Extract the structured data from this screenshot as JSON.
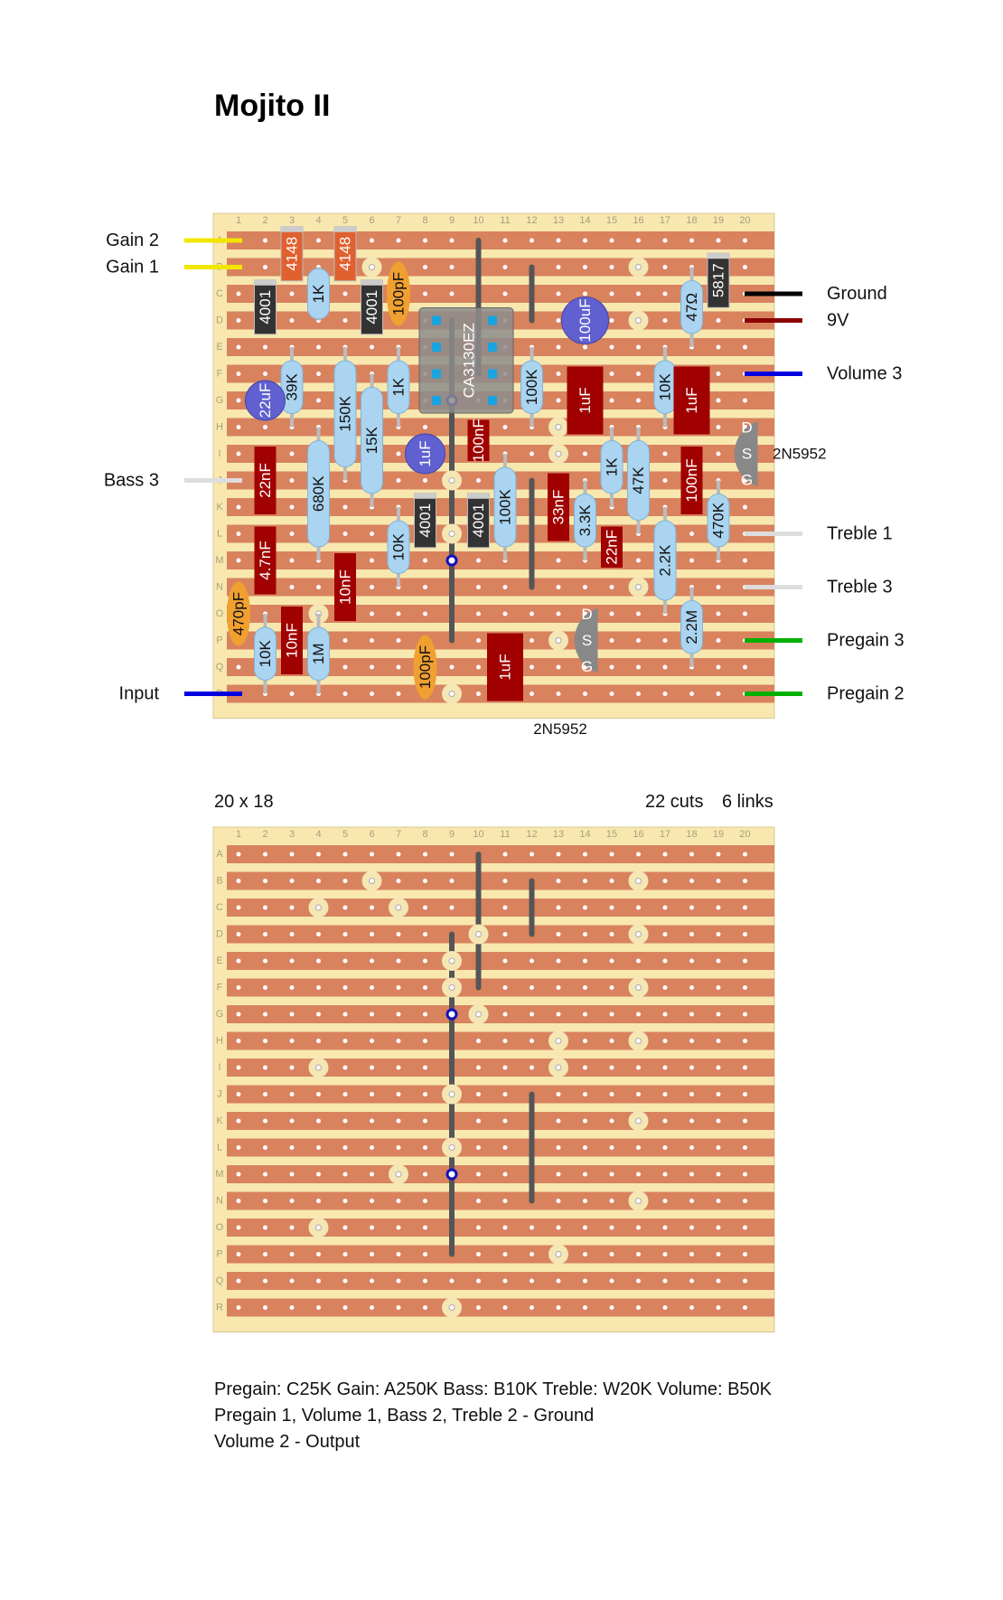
{
  "title": "Mojito II",
  "board": {
    "size": "20 x 18",
    "cuts": "22 cuts",
    "links": "6 links",
    "columns": [
      "1",
      "2",
      "3",
      "4",
      "5",
      "6",
      "7",
      "8",
      "9",
      "10",
      "11",
      "12",
      "13",
      "14",
      "15",
      "16",
      "17",
      "18",
      "19",
      "20"
    ],
    "rows": [
      "A",
      "B",
      "C",
      "D",
      "E",
      "F",
      "G",
      "H",
      "I",
      "J",
      "K",
      "L",
      "M",
      "N",
      "O",
      "P",
      "Q",
      "R"
    ]
  },
  "wires_left": [
    {
      "label": "Gain 2",
      "row": "A",
      "color": "#f2e600"
    },
    {
      "label": "Gain 1",
      "row": "B",
      "color": "#f2e600"
    },
    {
      "label": "Bass 3",
      "row": "J",
      "color": "#ffffff"
    },
    {
      "label": "Input",
      "row": "R",
      "color": "#0000e0"
    }
  ],
  "wires_right": [
    {
      "label": "Ground",
      "row": "C",
      "color": "#000000"
    },
    {
      "label": "9V",
      "row": "D",
      "color": "#8b0000"
    },
    {
      "label": "Volume 3",
      "row": "F",
      "color": "#0000e0"
    },
    {
      "label": "Treble 1",
      "row": "L",
      "color": "#ffffff"
    },
    {
      "label": "Treble 3",
      "row": "N",
      "color": "#ffffff"
    },
    {
      "label": "Pregain 3",
      "row": "P",
      "color": "#00b000"
    },
    {
      "label": "Pregain 2",
      "row": "R",
      "color": "#00b000"
    }
  ],
  "components": {
    "diodes": [
      {
        "label": "4148",
        "col": 3,
        "rows": [
          "A",
          "B"
        ],
        "color": "#e06030"
      },
      {
        "label": "4148",
        "col": 5,
        "rows": [
          "A",
          "B"
        ],
        "color": "#e06030"
      },
      {
        "label": "4001",
        "col": 2,
        "rows": [
          "C",
          "D"
        ],
        "color": "#333333"
      },
      {
        "label": "4001",
        "col": 6,
        "rows": [
          "C",
          "D"
        ],
        "color": "#333333"
      },
      {
        "label": "4001",
        "col": 8,
        "rows": [
          "K",
          "L"
        ],
        "color": "#333333"
      },
      {
        "label": "4001",
        "col": 10,
        "rows": [
          "K",
          "L"
        ],
        "color": "#333333"
      },
      {
        "label": "5817",
        "col": 19,
        "rows": [
          "B",
          "C"
        ],
        "color": "#333333"
      }
    ],
    "resistors": [
      {
        "label": "1K",
        "col": 4,
        "rows": [
          "B",
          "D"
        ]
      },
      {
        "label": "39K",
        "col": 3,
        "rows": [
          "E",
          "H"
        ]
      },
      {
        "label": "150K",
        "col": 5,
        "rows": [
          "E",
          "J"
        ]
      },
      {
        "label": "15K",
        "col": 6,
        "rows": [
          "F",
          "K"
        ]
      },
      {
        "label": "1K",
        "col": 7,
        "rows": [
          "E",
          "H"
        ]
      },
      {
        "label": "680K",
        "col": 4,
        "rows": [
          "H",
          "M"
        ]
      },
      {
        "label": "10K",
        "col": 7,
        "rows": [
          "K",
          "N"
        ]
      },
      {
        "label": "100K",
        "col": 12,
        "rows": [
          "E",
          "H"
        ]
      },
      {
        "label": "100K",
        "col": 11,
        "rows": [
          "I",
          "M"
        ]
      },
      {
        "label": "3.3K",
        "col": 14,
        "rows": [
          "J",
          "M"
        ]
      },
      {
        "label": "1K",
        "col": 15,
        "rows": [
          "H",
          "K"
        ]
      },
      {
        "label": "47K",
        "col": 16,
        "rows": [
          "H",
          "L"
        ]
      },
      {
        "label": "10K",
        "col": 17,
        "rows": [
          "E",
          "H"
        ]
      },
      {
        "label": "47Ω",
        "col": 18,
        "rows": [
          "B",
          "E"
        ]
      },
      {
        "label": "470K",
        "col": 19,
        "rows": [
          "J",
          "M"
        ]
      },
      {
        "label": "2.2K",
        "col": 17,
        "rows": [
          "K",
          "O"
        ]
      },
      {
        "label": "2.2M",
        "col": 18,
        "rows": [
          "N",
          "Q"
        ]
      },
      {
        "label": "10K",
        "col": 2,
        "rows": [
          "O",
          "R"
        ]
      },
      {
        "label": "1M",
        "col": 4,
        "rows": [
          "O",
          "R"
        ]
      }
    ],
    "film_caps": [
      {
        "label": "22nF",
        "col": 2,
        "rows": [
          "I",
          "K"
        ]
      },
      {
        "label": "4.7nF",
        "col": 2,
        "rows": [
          "L",
          "N"
        ]
      },
      {
        "label": "10nF",
        "col": 5,
        "rows": [
          "M",
          "O"
        ]
      },
      {
        "label": "10nF",
        "col": 3,
        "rows": [
          "O",
          "Q"
        ]
      },
      {
        "label": "100nF",
        "col": 10,
        "rows": [
          "H",
          "I"
        ]
      },
      {
        "label": "33nF",
        "col": 13,
        "rows": [
          "J",
          "L"
        ]
      },
      {
        "label": "22nF",
        "col": 15,
        "rows": [
          "L",
          "M"
        ]
      },
      {
        "label": "100nF",
        "col": 18,
        "rows": [
          "I",
          "K"
        ]
      },
      {
        "label": "1uF",
        "col": 14,
        "rows": [
          "F",
          "H"
        ]
      },
      {
        "label": "1uF",
        "col": 18,
        "rows": [
          "F",
          "H"
        ]
      },
      {
        "label": "1uF",
        "col": 11,
        "rows": [
          "P",
          "R"
        ]
      }
    ],
    "ceramic_caps": [
      {
        "label": "100pF",
        "col": 7,
        "rows": [
          "B",
          "D"
        ]
      },
      {
        "label": "470pF",
        "col": 1,
        "rows": [
          "N",
          "P"
        ]
      },
      {
        "label": "100pF",
        "col": 8,
        "rows": [
          "P",
          "R"
        ]
      }
    ],
    "electrolytics": [
      {
        "label": "22uF",
        "col": 2,
        "row": "G"
      },
      {
        "label": "1uF",
        "col": 8,
        "row": "I"
      },
      {
        "label": "100uF",
        "col": 14,
        "row": "D"
      }
    ],
    "ic": {
      "label": "CA3130EZ",
      "col": 9,
      "rows": [
        "D",
        "G"
      ]
    },
    "transistors": [
      {
        "label": "2N5952",
        "pins": [
          "D",
          "S",
          "G"
        ],
        "col": 20,
        "row": "I"
      },
      {
        "label": "2N5952",
        "pins": [
          "D",
          "S",
          "G"
        ],
        "col": 14,
        "row": "P"
      }
    ]
  },
  "footer": {
    "line1": "Pregain: C25K   Gain: A250K   Bass: B10K   Treble: W20K   Volume: B50K",
    "line2": "Pregain 1, Volume 1, Bass 2, Treble 2 - Ground",
    "line3": "Volume 2 - Output"
  },
  "colors": {
    "board": "#f8e8b0",
    "strip": "#d9825e",
    "resistor": "#aad4f0",
    "film_cap": "#a00000",
    "ceramic_cap": "#f0a030",
    "electrolytic": "#6060d0",
    "link": "#555555",
    "cut": "#f5e6b5"
  }
}
